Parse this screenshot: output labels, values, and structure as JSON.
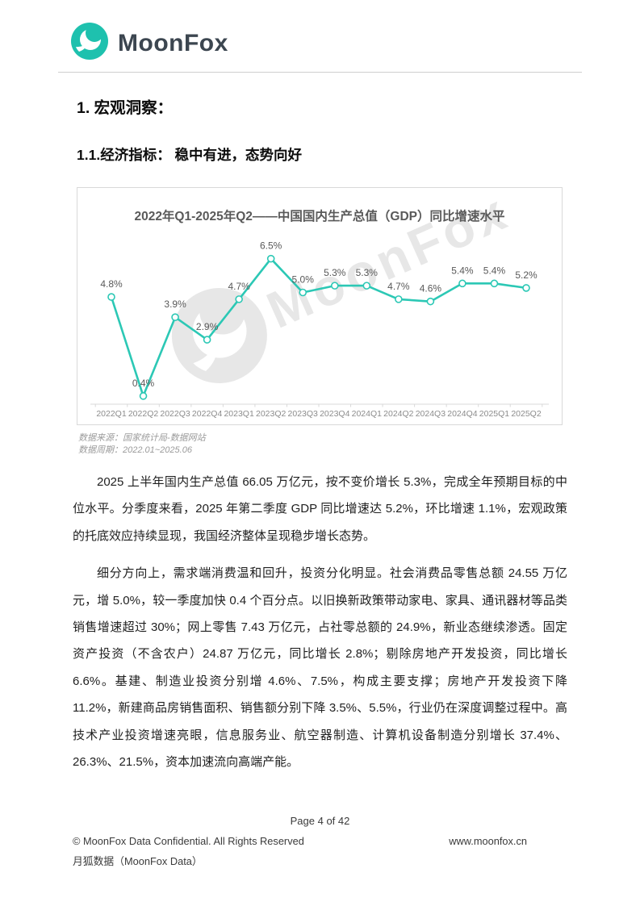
{
  "header": {
    "brand": "MoonFox",
    "brand_color": "#1ec1ae"
  },
  "headings": {
    "h1": "1. 宏观洞察：",
    "h2": "1.1.经济指标： 稳中有进，态势向好"
  },
  "chart_data": {
    "type": "line",
    "title": "2022年Q1-2025年Q2——中国国内生产总值（GDP）同比增速水平",
    "categories": [
      "2022Q1",
      "2022Q2",
      "2022Q3",
      "2022Q4",
      "2023Q1",
      "2023Q2",
      "2023Q3",
      "2023Q4",
      "2024Q1",
      "2024Q2",
      "2024Q3",
      "2024Q4",
      "2025Q1",
      "2025Q2"
    ],
    "values": [
      4.8,
      0.4,
      3.9,
      2.9,
      4.7,
      6.5,
      5.0,
      5.3,
      5.3,
      4.7,
      4.6,
      5.4,
      5.4,
      5.2
    ],
    "unit": "%",
    "xlabel": "",
    "ylabel": "",
    "ylim": [
      0,
      7.2
    ],
    "grid": false,
    "legend": "none",
    "line_color": "#2cc8b5",
    "label_color": "#595959",
    "axis_color": "#d9d9d9",
    "tick_label_color": "#8c8c8c",
    "watermark": "MoonFox"
  },
  "source_note": {
    "line1": "数据来源：国家统计局-数据网站",
    "line2": "数据周期：2022.01~2025.06"
  },
  "paragraphs": {
    "p1": "2025 上半年国内生产总值 66.05 万亿元，按不变价增长 5.3%，完成全年预期目标的中位水平。分季度来看，2025 年第二季度 GDP 同比增速达 5.2%，环比增速 1.1%，宏观政策的托底效应持续显现，我国经济整体呈现稳步增长态势。",
    "p2": "细分方向上，需求端消费温和回升，投资分化明显。社会消费品零售总额 24.55 万亿元，增 5.0%，较一季度加快 0.4 个百分点。以旧换新政策带动家电、家具、通讯器材等品类销售增速超过 30%；网上零售 7.43 万亿元，占社零总额的 24.9%，新业态继续渗透。固定资产投资（不含农户）24.87 万亿元，同比增长 2.8%；剔除房地产开发投资，同比增长 6.6%。基建、制造业投资分别增 4.6%、7.5%，构成主要支撑；房地产开发投资下降 11.2%，新建商品房销售面积、销售额分别下降 3.5%、5.5%，行业仍在深度调整过程中。高技术产业投资增速亮眼，信息服务业、航空器制造、计算机设备制造分别增长 37.4%、26.3%、21.5%，资本加速流向高端产能。"
  },
  "footer": {
    "page": "Page 4 of 42",
    "copyright": "© MoonFox Data Confidential. All Rights Reserved",
    "site": "www.moonfox.cn",
    "brand_cn": "月狐数据（MoonFox Data）"
  }
}
